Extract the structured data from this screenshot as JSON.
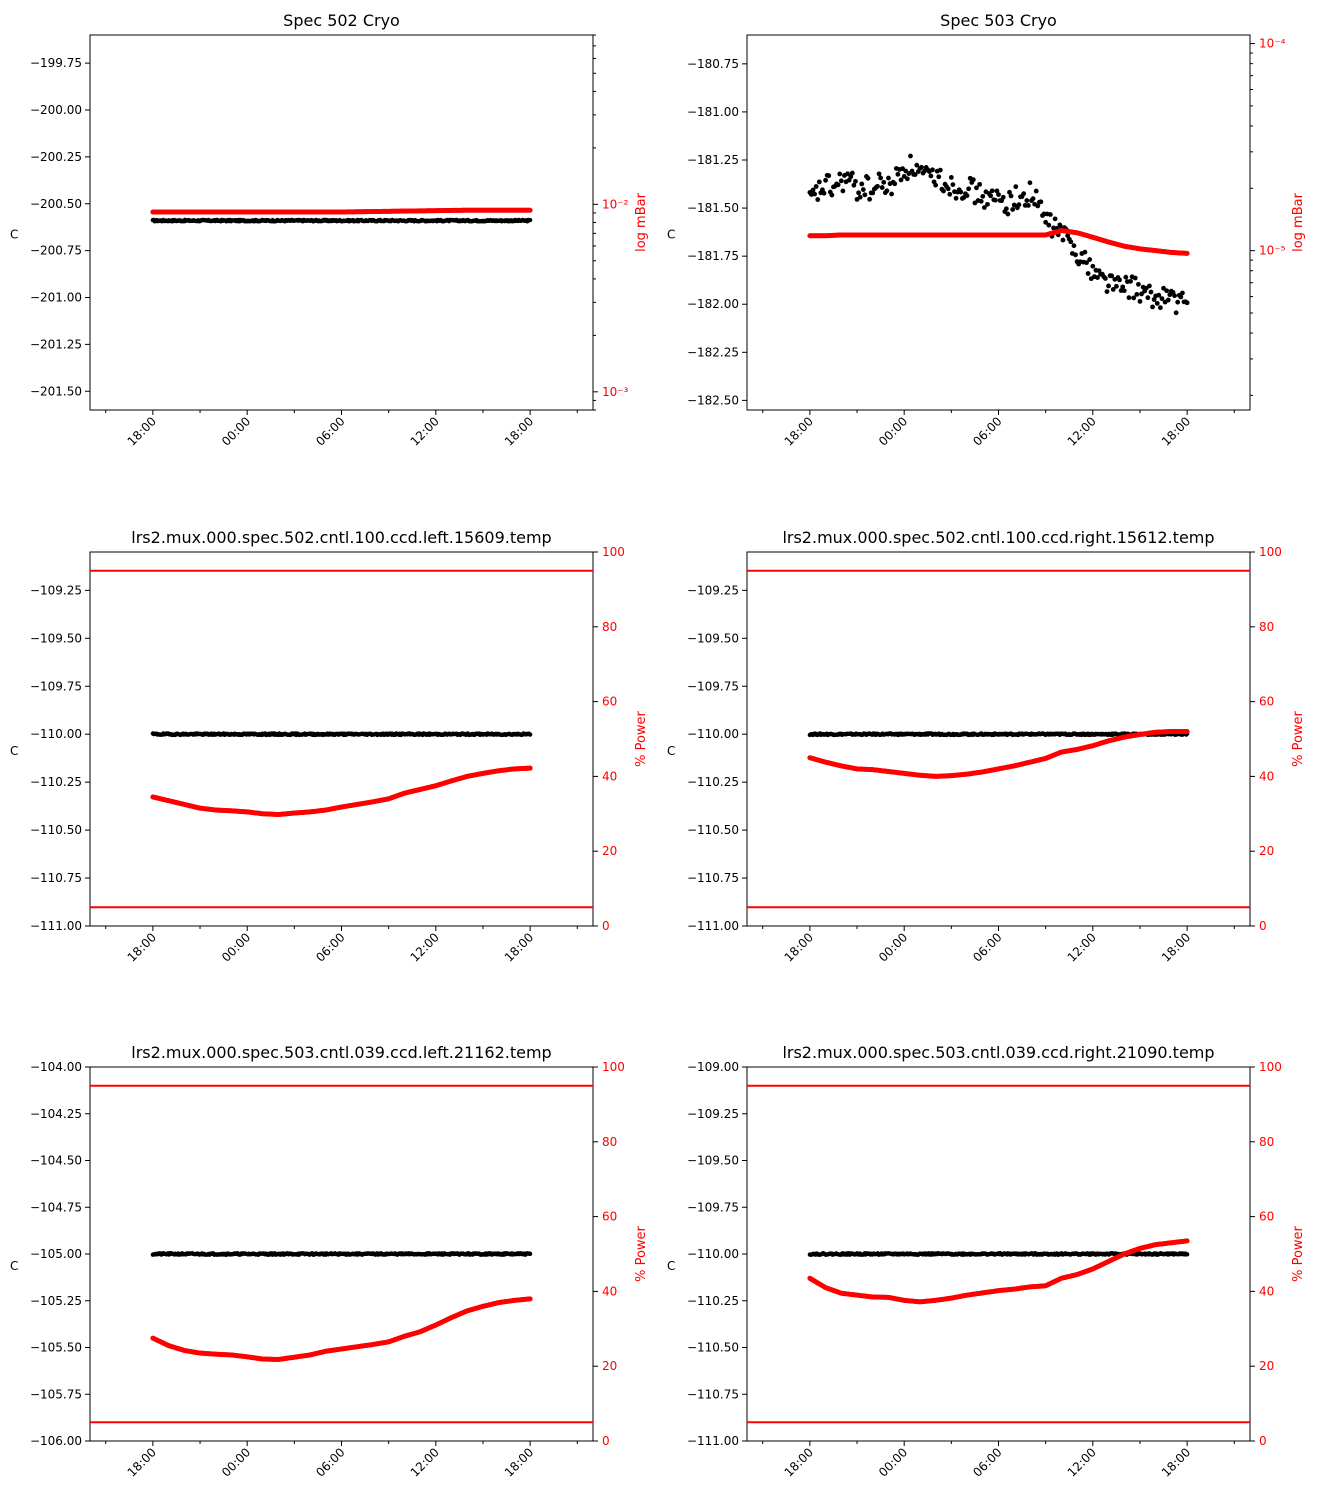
{
  "figure": {
    "background": "#ffffff",
    "left_color": "#000000",
    "right_color": "#ff0000",
    "setpoint_color": "#2ca02c"
  },
  "chart_data": [
    {
      "type": "scatter",
      "title": "Spec 502 Cryo",
      "x_ticks": [
        "18:00",
        "00:00",
        "06:00",
        "12:00",
        "18:00"
      ],
      "x_range_hours": [
        -4,
        28
      ],
      "left_axis": {
        "label": "C",
        "ylim": [
          -201.6,
          -199.6
        ],
        "ticks": [
          -199.75,
          -200.0,
          -200.25,
          -200.5,
          -200.75,
          -201.0,
          -201.25,
          -201.5
        ],
        "series": {
          "name": "temperature",
          "x": [
            0,
            4,
            8,
            12,
            16,
            20,
            24
          ],
          "y": [
            -200.59,
            -200.59,
            -200.59,
            -200.59,
            -200.59,
            -200.59,
            -200.59
          ]
        }
      },
      "right_axis": {
        "label": "log mBar",
        "scale": "log",
        "ylim": [
          0.0008,
          0.08
        ],
        "ticks": [
          {
            "v": 0.01,
            "label": "10⁻²"
          },
          {
            "v": 0.001,
            "label": "10⁻³"
          }
        ],
        "series": {
          "name": "pressure",
          "x": [
            0,
            4,
            8,
            12,
            16,
            20,
            24
          ],
          "y": [
            0.0091,
            0.0091,
            0.0091,
            0.0091,
            0.0092,
            0.0093,
            0.0093
          ]
        }
      }
    },
    {
      "type": "scatter",
      "title": "Spec 503 Cryo",
      "x_ticks": [
        "18:00",
        "00:00",
        "06:00",
        "12:00",
        "18:00"
      ],
      "x_range_hours": [
        -4,
        28
      ],
      "left_axis": {
        "label": "C",
        "ylim": [
          -182.55,
          -180.6
        ],
        "ticks": [
          -180.75,
          -181.0,
          -181.25,
          -181.5,
          -181.75,
          -182.0,
          -182.25,
          -182.5
        ],
        "series": {
          "name": "temperature",
          "x": [
            0,
            0.5,
            1,
            1.5,
            2,
            2.5,
            3,
            3.5,
            4,
            4.5,
            5,
            5.5,
            6,
            6.5,
            7,
            7.5,
            8,
            8.5,
            9,
            9.5,
            10,
            10.5,
            11,
            11.5,
            12,
            12.5,
            13,
            13.5,
            14,
            14.5,
            15,
            15.5,
            16,
            16.5,
            17,
            17.5,
            18,
            18.5,
            19,
            19.5,
            20,
            20.5,
            21,
            21.5,
            22,
            22.5,
            23,
            23.5,
            24
          ],
          "y": [
            -181.47,
            -181.42,
            -181.38,
            -181.4,
            -181.36,
            -181.35,
            -181.41,
            -181.38,
            -181.42,
            -181.36,
            -181.4,
            -181.34,
            -181.3,
            -181.28,
            -181.32,
            -181.35,
            -181.33,
            -181.36,
            -181.38,
            -181.4,
            -181.38,
            -181.42,
            -181.44,
            -181.46,
            -181.45,
            -181.48,
            -181.44,
            -181.47,
            -181.42,
            -181.48,
            -181.56,
            -181.6,
            -181.62,
            -181.68,
            -181.72,
            -181.78,
            -181.82,
            -181.86,
            -181.88,
            -181.9,
            -181.92,
            -181.9,
            -181.94,
            -181.96,
            -181.98,
            -181.95,
            -181.97,
            -182.0,
            -181.99
          ]
        }
      },
      "right_axis": {
        "label": "log mBar",
        "scale": "log",
        "ylim": [
          1.7e-06,
          0.00011
        ],
        "ticks": [
          {
            "v": 0.0001,
            "label": "10⁻⁴"
          },
          {
            "v": 1e-05,
            "label": "10⁻⁵"
          }
        ],
        "series": {
          "name": "pressure",
          "x": [
            0,
            1,
            2,
            3,
            4,
            5,
            6,
            7,
            8,
            9,
            10,
            11,
            12,
            13,
            14,
            15,
            16,
            17,
            18,
            19,
            20,
            21,
            22,
            23,
            24
          ],
          "y": [
            1.18e-05,
            1.18e-05,
            1.19e-05,
            1.19e-05,
            1.19e-05,
            1.19e-05,
            1.19e-05,
            1.19e-05,
            1.19e-05,
            1.19e-05,
            1.19e-05,
            1.19e-05,
            1.19e-05,
            1.19e-05,
            1.19e-05,
            1.19e-05,
            1.25e-05,
            1.22e-05,
            1.16e-05,
            1.1e-05,
            1.05e-05,
            1.02e-05,
            1e-05,
            9.8e-06,
            9.7e-06
          ]
        }
      }
    },
    {
      "type": "scatter",
      "title": "lrs2.mux.000.spec.502.cntl.100.ccd.left.15609.temp",
      "x_ticks": [
        "18:00",
        "00:00",
        "06:00",
        "12:00",
        "18:00"
      ],
      "x_range_hours": [
        -4,
        28
      ],
      "left_axis": {
        "label": "C",
        "ylim": [
          -111.0,
          -109.05
        ],
        "ticks": [
          -109.25,
          -109.5,
          -109.75,
          -110.0,
          -110.25,
          -110.5,
          -110.75,
          -111.0
        ],
        "series": {
          "name": "temperature",
          "x": [
            0,
            4,
            8,
            12,
            16,
            20,
            24
          ],
          "y": [
            -110.0,
            -110.0,
            -110.0,
            -110.0,
            -110.0,
            -110.0,
            -110.0
          ]
        },
        "setpoint": -110.0
      },
      "right_axis": {
        "label": "% Power",
        "ylim": [
          0,
          100
        ],
        "ticks": [
          0,
          20,
          40,
          60,
          80,
          100
        ],
        "limits": [
          95,
          5
        ],
        "series": {
          "name": "power",
          "x": [
            0,
            1,
            2,
            3,
            4,
            5,
            6,
            7,
            8,
            9,
            10,
            11,
            12,
            13,
            14,
            15,
            16,
            17,
            18,
            19,
            20,
            21,
            22,
            23,
            24
          ],
          "y": [
            34.5,
            33.5,
            32.5,
            31.5,
            31.0,
            30.8,
            30.5,
            30.0,
            29.8,
            30.2,
            30.5,
            31.0,
            31.8,
            32.5,
            33.2,
            34.0,
            35.5,
            36.5,
            37.5,
            38.8,
            40.0,
            40.8,
            41.5,
            42.0,
            42.2
          ]
        }
      }
    },
    {
      "type": "scatter",
      "title": "lrs2.mux.000.spec.502.cntl.100.ccd.right.15612.temp",
      "x_ticks": [
        "18:00",
        "00:00",
        "06:00",
        "12:00",
        "18:00"
      ],
      "x_range_hours": [
        -4,
        28
      ],
      "left_axis": {
        "label": "C",
        "ylim": [
          -111.0,
          -109.05
        ],
        "ticks": [
          -109.25,
          -109.5,
          -109.75,
          -110.0,
          -110.25,
          -110.5,
          -110.75,
          -111.0
        ],
        "series": {
          "name": "temperature",
          "x": [
            0,
            4,
            8,
            12,
            16,
            20,
            24
          ],
          "y": [
            -110.0,
            -110.0,
            -110.0,
            -110.0,
            -110.0,
            -110.0,
            -110.0
          ]
        },
        "setpoint": -110.0
      },
      "right_axis": {
        "label": "% Power",
        "ylim": [
          0,
          100
        ],
        "ticks": [
          0,
          20,
          40,
          60,
          80,
          100
        ],
        "limits": [
          95,
          5
        ],
        "series": {
          "name": "power",
          "x": [
            0,
            1,
            2,
            3,
            4,
            5,
            6,
            7,
            8,
            9,
            10,
            11,
            12,
            13,
            14,
            15,
            16,
            17,
            18,
            19,
            20,
            21,
            22,
            23,
            24
          ],
          "y": [
            45.0,
            43.8,
            42.8,
            42.0,
            41.8,
            41.3,
            40.8,
            40.3,
            40.0,
            40.2,
            40.6,
            41.2,
            42.0,
            42.8,
            43.8,
            44.8,
            46.5,
            47.2,
            48.2,
            49.5,
            50.5,
            51.2,
            51.8,
            52.0,
            52.0
          ]
        }
      }
    },
    {
      "type": "scatter",
      "title": "lrs2.mux.000.spec.503.cntl.039.ccd.left.21162.temp",
      "x_ticks": [
        "18:00",
        "00:00",
        "06:00",
        "12:00",
        "18:00"
      ],
      "x_range_hours": [
        -4,
        28
      ],
      "left_axis": {
        "label": "C",
        "ylim": [
          -106.0,
          -104.0
        ],
        "ticks": [
          -104.0,
          -104.25,
          -104.5,
          -104.75,
          -105.0,
          -105.25,
          -105.5,
          -105.75,
          -106.0
        ],
        "series": {
          "name": "temperature",
          "x": [
            0,
            4,
            8,
            12,
            16,
            20,
            24
          ],
          "y": [
            -105.0,
            -105.0,
            -105.0,
            -105.0,
            -105.0,
            -105.0,
            -105.0
          ]
        },
        "setpoint": -105.0
      },
      "right_axis": {
        "label": "% Power",
        "ylim": [
          0,
          100
        ],
        "ticks": [
          0,
          20,
          40,
          60,
          80,
          100
        ],
        "limits": [
          95,
          5
        ],
        "series": {
          "name": "power",
          "x": [
            0,
            1,
            2,
            3,
            4,
            5,
            6,
            7,
            8,
            9,
            10,
            11,
            12,
            13,
            14,
            15,
            16,
            17,
            18,
            19,
            20,
            21,
            22,
            23,
            24
          ],
          "y": [
            27.5,
            25.5,
            24.2,
            23.5,
            23.2,
            23.0,
            22.5,
            21.9,
            21.8,
            22.4,
            23.0,
            24.0,
            24.6,
            25.2,
            25.8,
            26.5,
            28.0,
            29.2,
            31.0,
            33.0,
            34.8,
            36.0,
            37.0,
            37.6,
            38.0
          ]
        }
      }
    },
    {
      "type": "scatter",
      "title": "lrs2.mux.000.spec.503.cntl.039.ccd.right.21090.temp",
      "x_ticks": [
        "18:00",
        "00:00",
        "06:00",
        "12:00",
        "18:00"
      ],
      "x_range_hours": [
        -4,
        28
      ],
      "left_axis": {
        "label": "C",
        "ylim": [
          -111.0,
          -109.0
        ],
        "ticks": [
          -109.0,
          -109.25,
          -109.5,
          -109.75,
          -110.0,
          -110.25,
          -110.5,
          -110.75,
          -111.0
        ],
        "series": {
          "name": "temperature",
          "x": [
            0,
            4,
            8,
            12,
            16,
            20,
            24
          ],
          "y": [
            -110.0,
            -110.0,
            -110.0,
            -110.0,
            -110.0,
            -110.0,
            -110.0
          ]
        },
        "setpoint": -110.0
      },
      "right_axis": {
        "label": "% Power",
        "ylim": [
          0,
          100
        ],
        "ticks": [
          0,
          20,
          40,
          60,
          80,
          100
        ],
        "limits": [
          95,
          5
        ],
        "series": {
          "name": "power",
          "x": [
            0,
            1,
            2,
            3,
            4,
            5,
            6,
            7,
            8,
            9,
            10,
            11,
            12,
            13,
            14,
            15,
            16,
            17,
            18,
            19,
            20,
            21,
            22,
            23,
            24
          ],
          "y": [
            43.5,
            41.0,
            39.5,
            39.0,
            38.5,
            38.4,
            37.6,
            37.2,
            37.6,
            38.2,
            39.0,
            39.6,
            40.2,
            40.6,
            41.2,
            41.5,
            43.5,
            44.5,
            46.0,
            48.0,
            50.0,
            51.5,
            52.5,
            53.0,
            53.5
          ]
        }
      }
    }
  ]
}
